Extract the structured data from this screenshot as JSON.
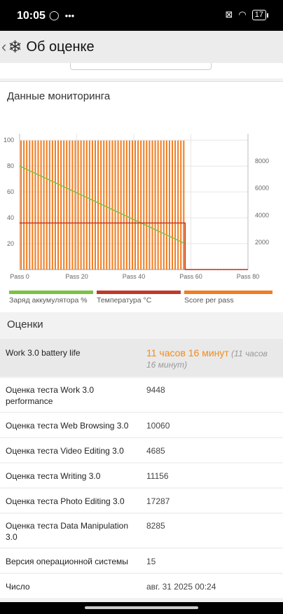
{
  "status": {
    "time": "10:05",
    "battery": "17",
    "battery_level": 0.17
  },
  "app_bar": {
    "title": "Об оценке",
    "back_icon": "chevron-left-icon",
    "app_icon": "snowflake-icon"
  },
  "monitoring": {
    "title": "Данные мониторинга",
    "legend": [
      {
        "label": "Заряд аккумулятора %",
        "color": "#7cc243"
      },
      {
        "label": "Температура °C",
        "color": "#c0392b"
      },
      {
        "label": "Score per pass",
        "color": "#f07d22"
      }
    ]
  },
  "chart_data": {
    "type": "bar",
    "x_ticks": [
      "Pass 0",
      "Pass 20",
      "Pass 40",
      "Pass 60",
      "Pass 80"
    ],
    "xlim": [
      0,
      80
    ],
    "y_left_ticks": [
      "20",
      "40",
      "60",
      "80",
      "100"
    ],
    "y_left_lim": [
      0,
      105
    ],
    "y_right_ticks": [
      "2000",
      "4000",
      "6000",
      "8000"
    ],
    "y_right_lim": [
      0,
      10000
    ],
    "grid": true,
    "score_per_pass": {
      "name": "Score per pass",
      "color": "#f07d22",
      "passes": 80,
      "score_to_pass": 58,
      "value_approx": 9500,
      "axis": "right"
    },
    "battery": {
      "name": "Заряд аккумулятора %",
      "color": "#7cc243",
      "points": [
        [
          0,
          80
        ],
        [
          58,
          20
        ]
      ],
      "axis": "left"
    },
    "temperature": {
      "name": "Температура °C",
      "color": "#c0392b",
      "points": [
        [
          0,
          36
        ],
        [
          58,
          36
        ],
        [
          58,
          0
        ],
        [
          80,
          0
        ]
      ],
      "axis": "left"
    }
  },
  "scores": {
    "title": "Оценки",
    "rows": [
      {
        "label": "Work 3.0 battery life",
        "value_main": "11 часов 16 минут",
        "value_extra": "(11 часов 16 минут)"
      },
      {
        "label": "Оценка теста Work 3.0 performance",
        "value": "9448"
      },
      {
        "label": "Оценка теста Web Browsing 3.0",
        "value": "10060"
      },
      {
        "label": "Оценка теста Video Editing 3.0",
        "value": "4685"
      },
      {
        "label": "Оценка теста Writing 3.0",
        "value": "11156"
      },
      {
        "label": "Оценка теста Photo Editing 3.0",
        "value": "17287"
      },
      {
        "label": "Оценка теста Data Manipulation 3.0",
        "value": "8285"
      },
      {
        "label": "Версия операционной системы",
        "value": "15"
      },
      {
        "label": "Число",
        "value": "авг. 31 2025 00:24"
      }
    ]
  }
}
